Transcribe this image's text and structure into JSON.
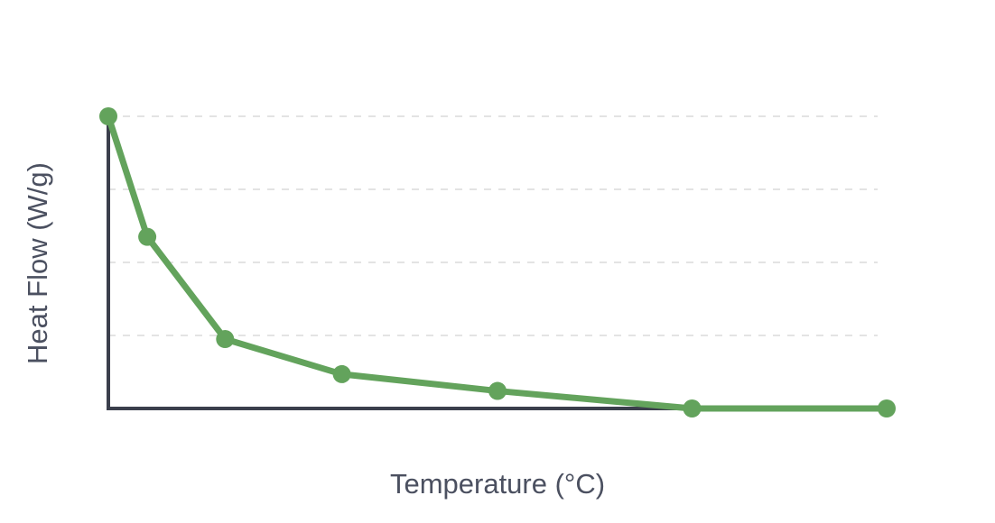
{
  "chart_data": {
    "type": "line",
    "title": "",
    "xlabel": "Temperature (°C)",
    "ylabel": "Heat Flow (W/g)",
    "x": [
      0,
      10,
      30,
      60,
      100,
      150,
      200
    ],
    "series": [
      {
        "name": "",
        "values": [
          4.0,
          2.35,
          0.95,
          0.47,
          0.24,
          0.0,
          0.0
        ]
      }
    ],
    "xlim": [
      0,
      200
    ],
    "ylim": [
      0,
      4.0
    ],
    "y_gridlines": [
      1.0,
      2.0,
      3.0,
      4.0
    ],
    "grid": true,
    "legend": false,
    "colors": {
      "series": "#63a35c",
      "axis": "#3b3f4c",
      "grid": "#e3e3e3",
      "text": "#4b5060"
    }
  }
}
